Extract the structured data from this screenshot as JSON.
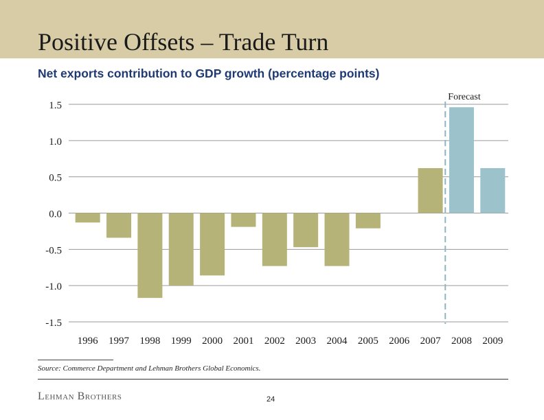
{
  "header": {
    "title": "Positive Offsets – Trade Turn"
  },
  "chart_data": {
    "type": "bar",
    "title": "Net exports contribution to GDP growth (percentage points)",
    "categories": [
      "1996",
      "1997",
      "1998",
      "1999",
      "2000",
      "2001",
      "2002",
      "2003",
      "2004",
      "2005",
      "2006",
      "2007",
      "2008",
      "2009"
    ],
    "values": [
      -0.13,
      -0.34,
      -1.17,
      -1.0,
      -0.86,
      -0.19,
      -0.73,
      -0.47,
      -0.73,
      -0.21,
      0.0,
      0.62,
      1.46,
      0.62
    ],
    "forecast_label": "Forecast",
    "forecast_from": "2008",
    "ylim": [
      -1.5,
      1.5
    ],
    "yticks": [
      "-1.5",
      "-1.0",
      "-0.5",
      "0.0",
      "0.5",
      "1.0",
      "1.5"
    ],
    "grid": true,
    "colors": {
      "actual": "#b5b377",
      "forecast": "#9cc2cb",
      "forecast_line": "#8fb4c2"
    }
  },
  "footer": {
    "source": "Source: Commerce Department and Lehman Brothers Global Economics.",
    "logo_text": "Lehman Brothers",
    "page_number": "24"
  }
}
